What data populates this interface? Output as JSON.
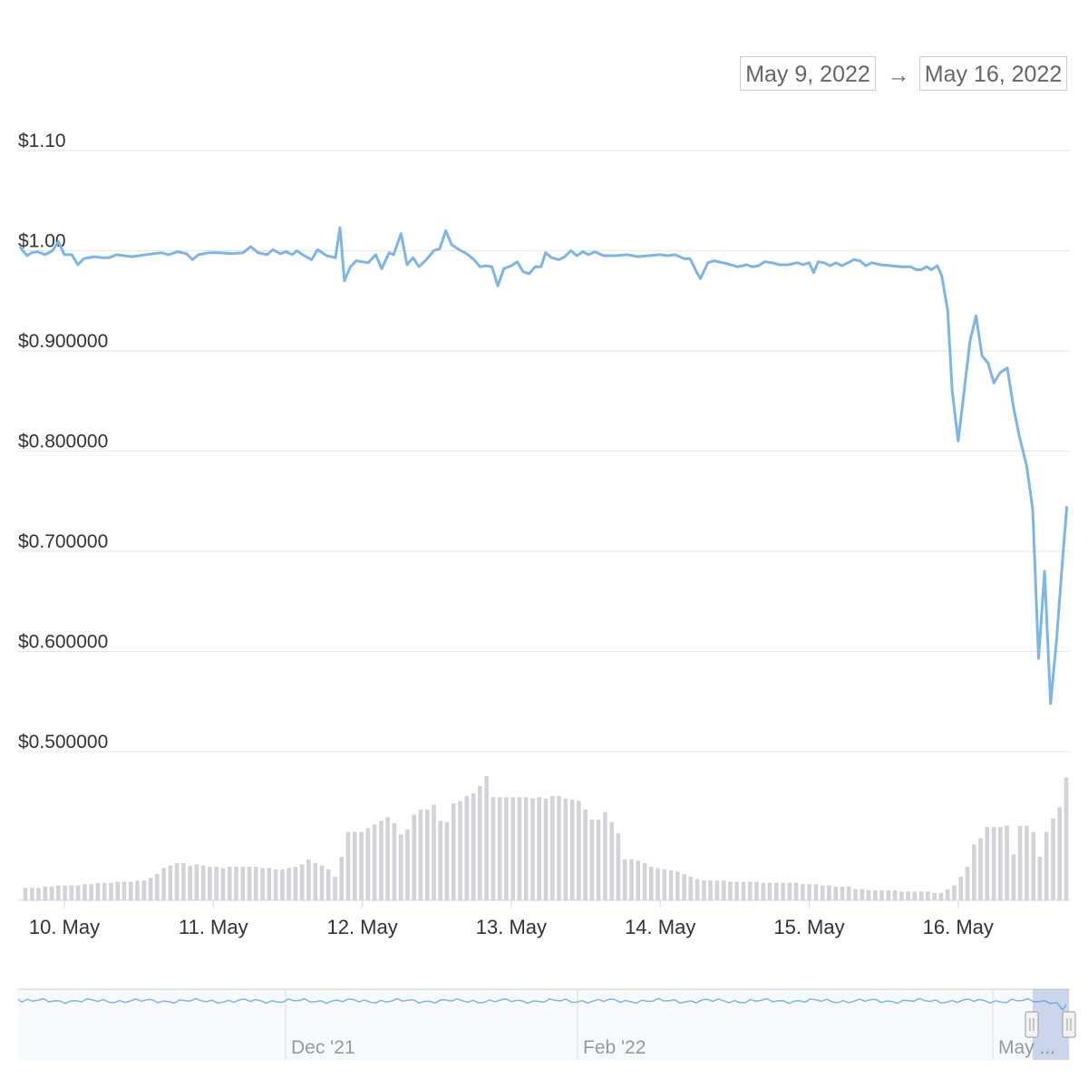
{
  "range_selector": {
    "from": "May 9, 2022",
    "arrow": "→",
    "to": "May 16, 2022"
  },
  "chart_data": {
    "type": "line",
    "ylabel": "",
    "xlabel": "",
    "y_tick_labels": [
      "$1.10",
      "$1.00",
      "$0.900000",
      "$0.800000",
      "$0.700000",
      "$0.600000",
      "$0.500000"
    ],
    "y_tick_values": [
      1.1,
      1.0,
      0.9,
      0.8,
      0.7,
      0.6,
      0.5
    ],
    "ylim": [
      0.5,
      1.1
    ],
    "x_tick_labels": [
      "10. May",
      "11. May",
      "12. May",
      "13. May",
      "14. May",
      "15. May",
      "16. May"
    ],
    "grid": true,
    "x_days_range": [
      9.7,
      16.75
    ],
    "series": [
      {
        "values": [
          [
            9.7,
            1.004
          ],
          [
            9.75,
            0.995
          ],
          [
            9.78,
            0.998
          ],
          [
            9.82,
            0.999
          ],
          [
            9.87,
            0.996
          ],
          [
            9.92,
            1.0
          ],
          [
            9.96,
            1.009
          ],
          [
            10.0,
            0.996
          ],
          [
            10.05,
            0.996
          ],
          [
            10.09,
            0.986
          ],
          [
            10.13,
            0.992
          ],
          [
            10.2,
            0.994
          ],
          [
            10.25,
            0.993
          ],
          [
            10.3,
            0.993
          ],
          [
            10.35,
            0.996
          ],
          [
            10.45,
            0.994
          ],
          [
            10.55,
            0.996
          ],
          [
            10.65,
            0.998
          ],
          [
            10.7,
            0.996
          ],
          [
            10.76,
            0.999
          ],
          [
            10.82,
            0.997
          ],
          [
            10.86,
            0.991
          ],
          [
            10.9,
            0.996
          ],
          [
            10.97,
            0.998
          ],
          [
            11.05,
            0.998
          ],
          [
            11.12,
            0.997
          ],
          [
            11.2,
            0.998
          ],
          [
            11.25,
            1.004
          ],
          [
            11.3,
            0.998
          ],
          [
            11.36,
            0.996
          ],
          [
            11.4,
            1.001
          ],
          [
            11.45,
            0.997
          ],
          [
            11.49,
            0.999
          ],
          [
            11.53,
            0.996
          ],
          [
            11.56,
            1.0
          ],
          [
            11.61,
            0.995
          ],
          [
            11.66,
            0.991
          ],
          [
            11.7,
            1.001
          ],
          [
            11.76,
            0.995
          ],
          [
            11.82,
            0.993
          ],
          [
            11.85,
            1.023
          ],
          [
            11.88,
            0.97
          ],
          [
            11.92,
            0.984
          ],
          [
            11.96,
            0.99
          ],
          [
            12.0,
            0.989
          ],
          [
            12.04,
            0.988
          ],
          [
            12.09,
            0.996
          ],
          [
            12.13,
            0.982
          ],
          [
            12.18,
            0.998
          ],
          [
            12.21,
            0.996
          ],
          [
            12.26,
            1.017
          ],
          [
            12.3,
            0.986
          ],
          [
            12.34,
            0.993
          ],
          [
            12.38,
            0.984
          ],
          [
            12.43,
            0.991
          ],
          [
            12.48,
            1.0
          ],
          [
            12.52,
            1.002
          ],
          [
            12.56,
            1.02
          ],
          [
            12.6,
            1.006
          ],
          [
            12.65,
            1.001
          ],
          [
            12.7,
            0.997
          ],
          [
            12.75,
            0.991
          ],
          [
            12.79,
            0.984
          ],
          [
            12.83,
            0.985
          ],
          [
            12.87,
            0.984
          ],
          [
            12.91,
            0.965
          ],
          [
            12.95,
            0.982
          ],
          [
            13.0,
            0.985
          ],
          [
            13.04,
            0.989
          ],
          [
            13.08,
            0.979
          ],
          [
            13.12,
            0.977
          ],
          [
            13.16,
            0.984
          ],
          [
            13.2,
            0.984
          ],
          [
            13.23,
            0.998
          ],
          [
            13.27,
            0.993
          ],
          [
            13.32,
            0.991
          ],
          [
            13.36,
            0.994
          ],
          [
            13.4,
            1.0
          ],
          [
            13.44,
            0.995
          ],
          [
            13.48,
            0.999
          ],
          [
            13.52,
            0.996
          ],
          [
            13.56,
            0.999
          ],
          [
            13.62,
            0.995
          ],
          [
            13.7,
            0.995
          ],
          [
            13.78,
            0.996
          ],
          [
            13.85,
            0.994
          ],
          [
            13.92,
            0.995
          ],
          [
            14.0,
            0.996
          ],
          [
            14.05,
            0.995
          ],
          [
            14.1,
            0.996
          ],
          [
            14.16,
            0.992
          ],
          [
            14.2,
            0.992
          ],
          [
            14.24,
            0.98
          ],
          [
            14.27,
            0.972
          ],
          [
            14.32,
            0.988
          ],
          [
            14.36,
            0.99
          ],
          [
            14.45,
            0.987
          ],
          [
            14.52,
            0.984
          ],
          [
            14.58,
            0.986
          ],
          [
            14.62,
            0.984
          ],
          [
            14.66,
            0.985
          ],
          [
            14.7,
            0.989
          ],
          [
            14.75,
            0.988
          ],
          [
            14.8,
            0.986
          ],
          [
            14.86,
            0.986
          ],
          [
            14.92,
            0.988
          ],
          [
            14.96,
            0.986
          ],
          [
            15.0,
            0.988
          ],
          [
            15.03,
            0.978
          ],
          [
            15.06,
            0.989
          ],
          [
            15.1,
            0.988
          ],
          [
            15.14,
            0.985
          ],
          [
            15.18,
            0.988
          ],
          [
            15.22,
            0.985
          ],
          [
            15.26,
            0.988
          ],
          [
            15.3,
            0.991
          ],
          [
            15.34,
            0.99
          ],
          [
            15.38,
            0.985
          ],
          [
            15.42,
            0.988
          ],
          [
            15.48,
            0.986
          ],
          [
            15.55,
            0.985
          ],
          [
            15.62,
            0.984
          ],
          [
            15.68,
            0.984
          ],
          [
            15.72,
            0.981
          ],
          [
            15.75,
            0.981
          ],
          [
            15.79,
            0.984
          ],
          [
            15.82,
            0.981
          ],
          [
            15.86,
            0.985
          ],
          [
            15.89,
            0.975
          ],
          [
            15.93,
            0.94
          ],
          [
            15.96,
            0.86
          ],
          [
            16.0,
            0.81
          ],
          [
            16.04,
            0.86
          ],
          [
            16.08,
            0.91
          ],
          [
            16.12,
            0.935
          ],
          [
            16.16,
            0.895
          ],
          [
            16.2,
            0.888
          ],
          [
            16.24,
            0.868
          ],
          [
            16.28,
            0.878
          ],
          [
            16.33,
            0.883
          ],
          [
            16.37,
            0.845
          ],
          [
            16.41,
            0.815
          ],
          [
            16.46,
            0.785
          ],
          [
            16.5,
            0.742
          ],
          [
            16.54,
            0.593
          ],
          [
            16.58,
            0.68
          ],
          [
            16.62,
            0.548
          ],
          [
            16.66,
            0.61
          ],
          [
            16.7,
            0.69
          ],
          [
            16.73,
            0.745
          ]
        ]
      }
    ],
    "volume": [
      0.1,
      0.1,
      0.1,
      0.11,
      0.11,
      0.12,
      0.12,
      0.12,
      0.12,
      0.13,
      0.13,
      0.14,
      0.14,
      0.14,
      0.15,
      0.15,
      0.15,
      0.16,
      0.16,
      0.18,
      0.21,
      0.26,
      0.28,
      0.3,
      0.3,
      0.28,
      0.29,
      0.28,
      0.27,
      0.27,
      0.26,
      0.27,
      0.27,
      0.27,
      0.27,
      0.27,
      0.26,
      0.26,
      0.25,
      0.25,
      0.26,
      0.27,
      0.29,
      0.33,
      0.3,
      0.28,
      0.25,
      0.19,
      0.35,
      0.55,
      0.55,
      0.55,
      0.58,
      0.61,
      0.64,
      0.67,
      0.62,
      0.53,
      0.57,
      0.69,
      0.73,
      0.73,
      0.77,
      0.64,
      0.63,
      0.78,
      0.8,
      0.84,
      0.86,
      0.92,
      1.0,
      0.83,
      0.83,
      0.83,
      0.83,
      0.83,
      0.83,
      0.82,
      0.83,
      0.82,
      0.84,
      0.84,
      0.82,
      0.81,
      0.8,
      0.73,
      0.65,
      0.65,
      0.71,
      0.63,
      0.54,
      0.33,
      0.33,
      0.32,
      0.3,
      0.27,
      0.26,
      0.25,
      0.24,
      0.23,
      0.21,
      0.19,
      0.17,
      0.16,
      0.16,
      0.16,
      0.16,
      0.15,
      0.15,
      0.15,
      0.15,
      0.15,
      0.14,
      0.14,
      0.14,
      0.14,
      0.14,
      0.14,
      0.13,
      0.13,
      0.13,
      0.12,
      0.12,
      0.11,
      0.11,
      0.11,
      0.09,
      0.09,
      0.08,
      0.08,
      0.08,
      0.08,
      0.08,
      0.07,
      0.07,
      0.07,
      0.07,
      0.07,
      0.06,
      0.06,
      0.09,
      0.12,
      0.19,
      0.27,
      0.45,
      0.5,
      0.59,
      0.59,
      0.59,
      0.6,
      0.37,
      0.6,
      0.6,
      0.55,
      0.35,
      0.55,
      0.66,
      0.75,
      0.99
    ],
    "navigator": {
      "x_tick_labels": [
        "Dec '21",
        "Feb '22",
        "May ..."
      ]
    }
  }
}
